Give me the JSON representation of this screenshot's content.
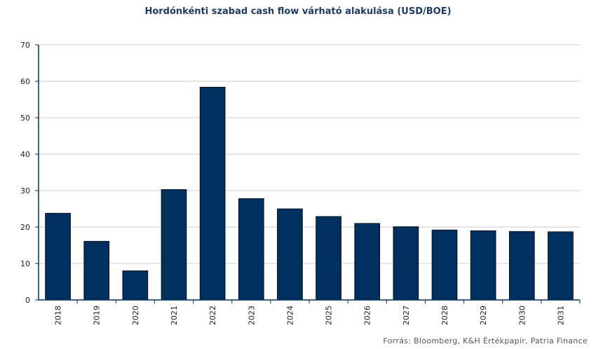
{
  "title": "Hordónkénti szabad cash flow várható alakulása (USD/BOE)",
  "source": "Forrás: Bloomberg, K&H Értékpapír, Patria Finance",
  "chart_data": {
    "type": "bar",
    "title": "Hordónkénti szabad cash flow várható alakulása (USD/BOE)",
    "categories": [
      "2018",
      "2019",
      "2020",
      "2021",
      "2022",
      "2023",
      "2024",
      "2025",
      "2026",
      "2027",
      "2028",
      "2029",
      "2030",
      "2031"
    ],
    "values": [
      23.8,
      16.1,
      8.0,
      30.3,
      58.4,
      27.8,
      25.0,
      22.9,
      21.0,
      20.1,
      19.2,
      19.0,
      18.8,
      18.7
    ],
    "ylim": [
      0,
      70
    ],
    "yticks": [
      0,
      10,
      20,
      30,
      40,
      50,
      60,
      70
    ],
    "xlabel": "",
    "ylabel": "",
    "grid": true,
    "bar_color": "#00305f"
  }
}
